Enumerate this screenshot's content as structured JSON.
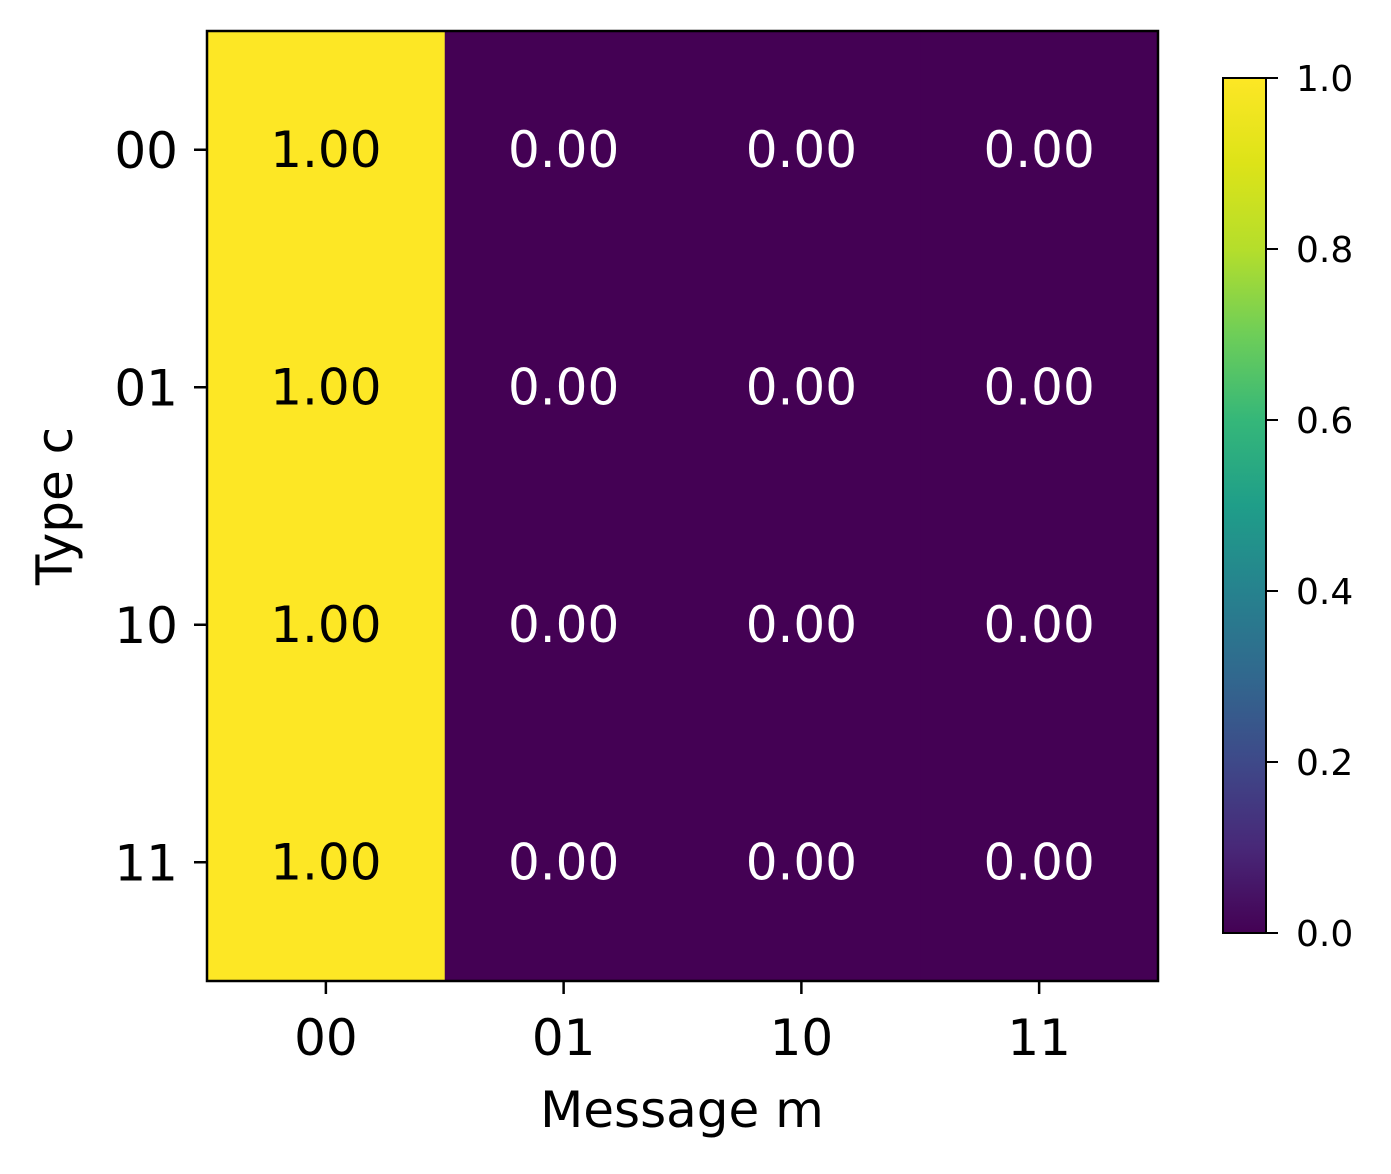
{
  "chart_data": {
    "type": "heatmap",
    "title": "",
    "xlabel": "Message m",
    "ylabel": "Type c",
    "x_categories": [
      "00",
      "01",
      "10",
      "11"
    ],
    "y_categories": [
      "00",
      "01",
      "10",
      "11"
    ],
    "values": [
      [
        1.0,
        0.0,
        0.0,
        0.0
      ],
      [
        1.0,
        0.0,
        0.0,
        0.0
      ],
      [
        1.0,
        0.0,
        0.0,
        0.0
      ],
      [
        1.0,
        0.0,
        0.0,
        0.0
      ]
    ],
    "cell_labels": [
      [
        "1.00",
        "0.00",
        "0.00",
        "0.00"
      ],
      [
        "1.00",
        "0.00",
        "0.00",
        "0.00"
      ],
      [
        "1.00",
        "0.00",
        "0.00",
        "0.00"
      ],
      [
        "1.00",
        "0.00",
        "0.00",
        "0.00"
      ]
    ],
    "colormap": "viridis",
    "colorbar": {
      "range": [
        0.0,
        1.0
      ],
      "ticks": [
        "0.0",
        "0.2",
        "0.4",
        "0.6",
        "0.8",
        "1.0"
      ]
    },
    "colors": {
      "high": "#fde725",
      "low": "#440154",
      "text_on_high": "#000000",
      "text_on_low": "#ffffff"
    },
    "grid": false,
    "legend": "colorbar-right"
  }
}
